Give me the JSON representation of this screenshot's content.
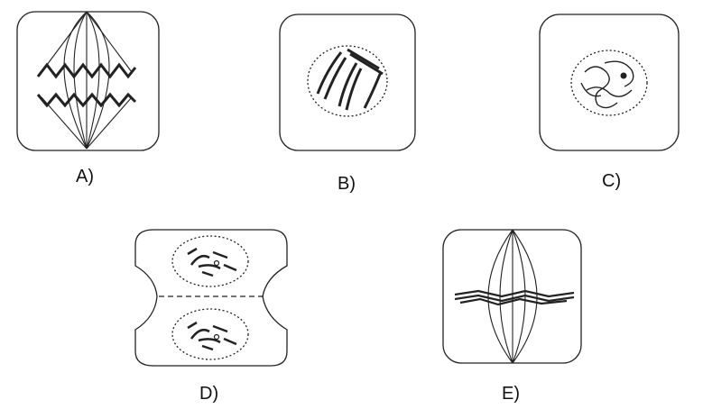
{
  "diagram": {
    "panels": [
      {
        "id": "A",
        "label": "A)"
      },
      {
        "id": "B",
        "label": "B)"
      },
      {
        "id": "C",
        "label": "C)"
      },
      {
        "id": "D",
        "label": "D)"
      },
      {
        "id": "E",
        "label": "E)"
      }
    ]
  },
  "colors": {
    "stroke": "#222222",
    "background": "#ffffff"
  }
}
